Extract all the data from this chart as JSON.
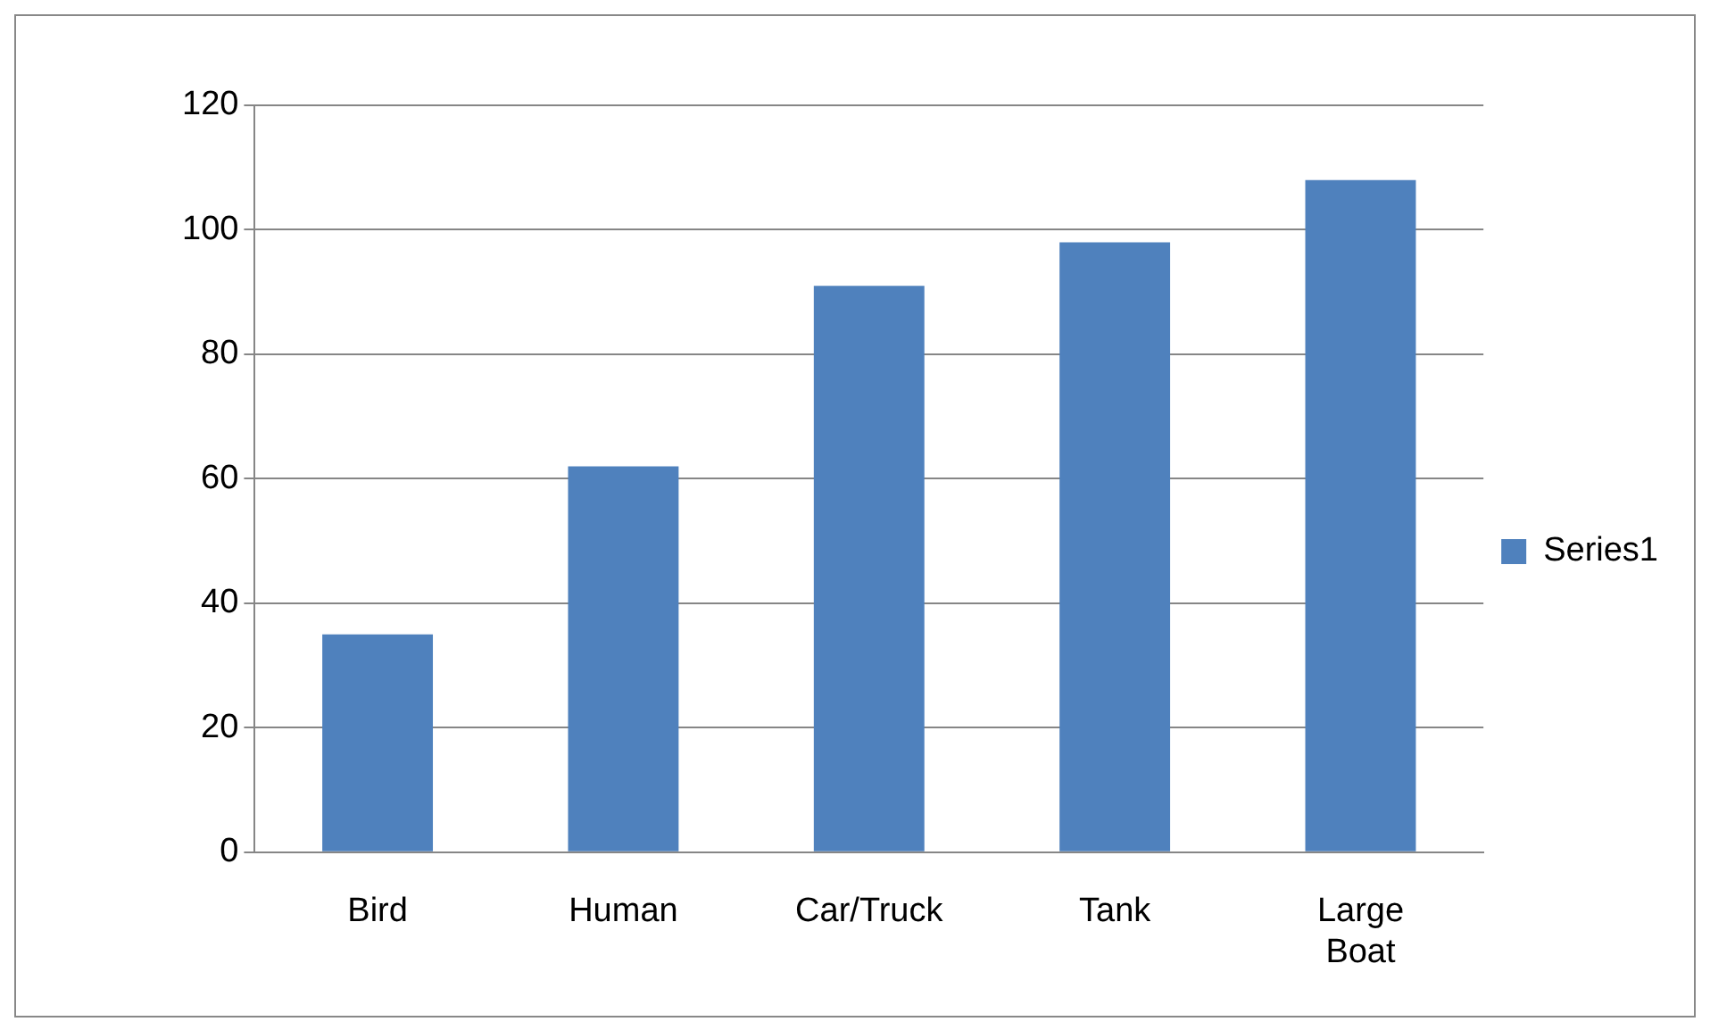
{
  "chart_data": {
    "type": "bar",
    "categories": [
      "Bird",
      "Human",
      "Car/Truck",
      "Tank",
      "Large Boat"
    ],
    "series": [
      {
        "name": "Series1",
        "color": "#4f81bd",
        "values": [
          35,
          62,
          91,
          98,
          108
        ]
      }
    ],
    "ylim": [
      0,
      120
    ],
    "yticks": [
      0,
      20,
      40,
      60,
      80,
      100,
      120
    ],
    "grid": "y",
    "legend": "right"
  }
}
